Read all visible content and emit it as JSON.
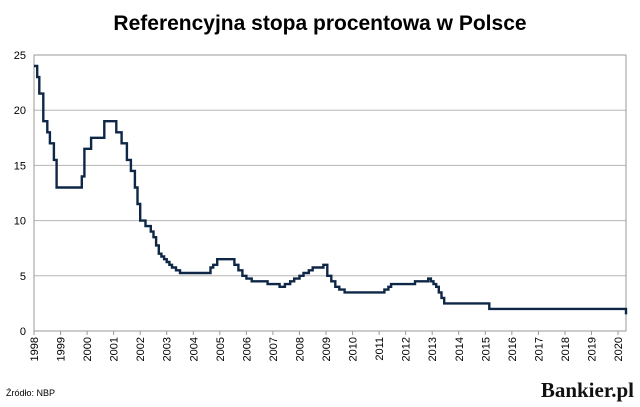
{
  "chart_data": {
    "type": "line",
    "title": "Referencyjna stopa procentowa w Polsce",
    "xlabel": "",
    "ylabel": "",
    "xlim": [
      1998,
      2020.3
    ],
    "ylim": [
      0,
      25
    ],
    "grid": true,
    "legend": "none",
    "line_color": "#0f2746",
    "y_ticks": [
      "0",
      "5",
      "10",
      "15",
      "20",
      "25"
    ],
    "x_ticks": [
      "1998",
      "1999",
      "2000",
      "2001",
      "2002",
      "2003",
      "2004",
      "2005",
      "2006",
      "2007",
      "2008",
      "2009",
      "2010",
      "2011",
      "2012",
      "2013",
      "2014",
      "2015",
      "2016",
      "2017",
      "2018",
      "2019",
      "2020"
    ],
    "series": [
      {
        "name": "",
        "x": [
          1998.0,
          1998.12,
          1998.2,
          1998.35,
          1998.5,
          1998.6,
          1998.75,
          1998.85,
          1999.0,
          1999.2,
          1999.8,
          1999.9,
          2000.0,
          2000.15,
          2000.35,
          2000.65,
          2001.1,
          2001.3,
          2001.5,
          2001.65,
          2001.8,
          2001.9,
          2002.0,
          2002.1,
          2002.2,
          2002.4,
          2002.5,
          2002.6,
          2002.7,
          2002.8,
          2002.9,
          2003.0,
          2003.1,
          2003.2,
          2003.35,
          2003.5,
          2003.6,
          2004.65,
          2004.75,
          2004.9,
          2005.4,
          2005.55,
          2005.7,
          2005.85,
          2006.0,
          2006.2,
          2006.8,
          2007.25,
          2007.45,
          2007.65,
          2007.8,
          2008.0,
          2008.15,
          2008.35,
          2008.5,
          2008.9,
          2009.05,
          2009.2,
          2009.35,
          2009.5,
          2009.7,
          2011.05,
          2011.2,
          2011.35,
          2011.45,
          2012.35,
          2012.85,
          2012.95,
          2013.05,
          2013.15,
          2013.25,
          2013.35,
          2013.45,
          2014.8,
          2015.15,
          2020.3
        ],
        "y": [
          24.0,
          23.0,
          21.5,
          19.0,
          18.0,
          17.0,
          15.5,
          13.0,
          13.0,
          13.0,
          14.0,
          16.5,
          16.5,
          17.5,
          17.5,
          19.0,
          18.0,
          17.0,
          15.5,
          14.5,
          13.0,
          11.5,
          10.0,
          10.0,
          9.5,
          9.0,
          8.5,
          7.75,
          7.0,
          6.75,
          6.5,
          6.25,
          6.0,
          5.75,
          5.5,
          5.25,
          5.25,
          5.75,
          6.0,
          6.5,
          6.5,
          6.0,
          5.5,
          5.0,
          4.75,
          4.5,
          4.25,
          4.0,
          4.25,
          4.5,
          4.75,
          5.0,
          5.25,
          5.5,
          5.75,
          6.0,
          5.0,
          4.5,
          4.0,
          3.75,
          3.5,
          3.5,
          3.75,
          4.0,
          4.25,
          4.5,
          4.75,
          4.5,
          4.25,
          4.0,
          3.5,
          3.0,
          2.5,
          2.5,
          2.0,
          1.5
        ]
      }
    ]
  },
  "footer": {
    "source": "Źródło: NBP",
    "brand": "Bankier.pl"
  }
}
